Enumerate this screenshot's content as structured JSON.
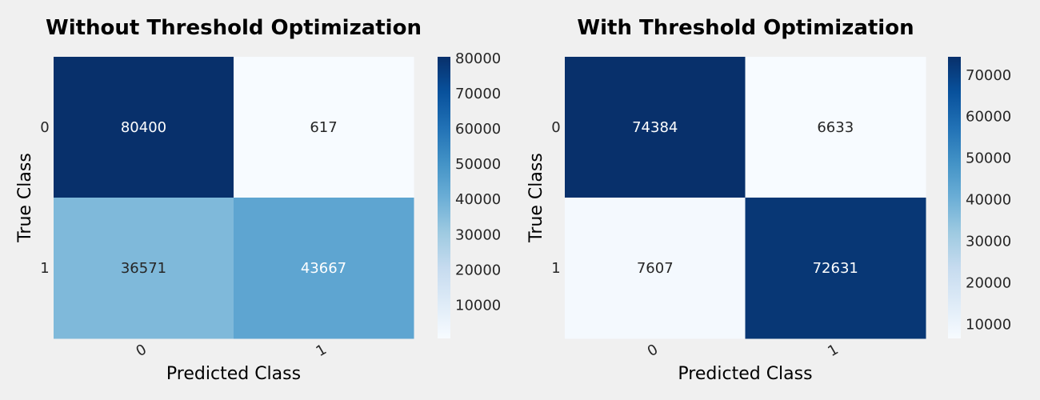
{
  "colors": {
    "background": "#f0f0f0",
    "cmap": [
      "#f7fbff",
      "#deebf7",
      "#c6dbef",
      "#9ecae1",
      "#6baed6",
      "#4292c6",
      "#2171b5",
      "#08519c",
      "#08306b"
    ],
    "text_dark": "#262626",
    "text_light": "#ffffff"
  },
  "chart_data": [
    {
      "type": "heatmap",
      "title": "Without Threshold Optimization",
      "xlabel": "Predicted Class",
      "ylabel": "True Class",
      "x_categories": [
        "0",
        "1"
      ],
      "y_categories": [
        "0",
        "1"
      ],
      "values": [
        [
          80400,
          617
        ],
        [
          36571,
          43667
        ]
      ],
      "colorbar": {
        "ticks": [
          "10000",
          "20000",
          "30000",
          "40000",
          "50000",
          "60000",
          "70000",
          "80000"
        ],
        "range": [
          617,
          80400
        ]
      }
    },
    {
      "type": "heatmap",
      "title": "With Threshold Optimization",
      "xlabel": "Predicted Class",
      "ylabel": "True Class",
      "x_categories": [
        "0",
        "1"
      ],
      "y_categories": [
        "0",
        "1"
      ],
      "values": [
        [
          74384,
          6633
        ],
        [
          7607,
          72631
        ]
      ],
      "colorbar": {
        "ticks": [
          "10000",
          "20000",
          "30000",
          "40000",
          "50000",
          "60000",
          "70000"
        ],
        "range": [
          6633,
          74384
        ]
      }
    }
  ]
}
